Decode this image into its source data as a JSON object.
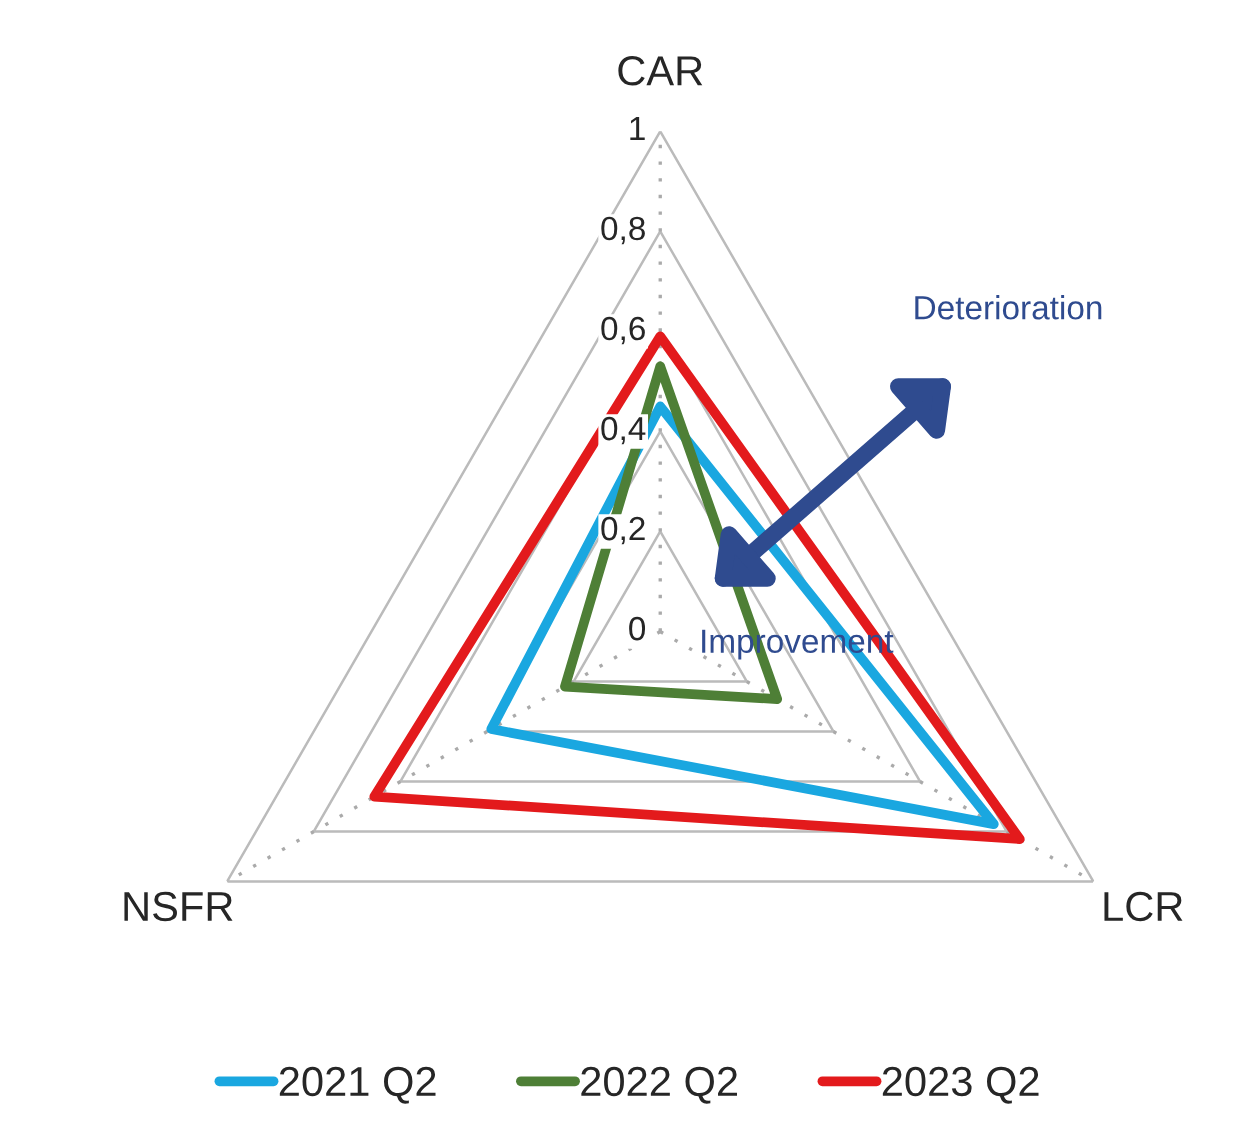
{
  "chart_data": {
    "type": "radar",
    "categories": [
      "CAR",
      "LCR",
      "NSFR"
    ],
    "series": [
      {
        "name": "2021 Q2",
        "color": "#1aa7e0",
        "values": [
          0.45,
          0.77,
          0.39
        ]
      },
      {
        "name": "2022 Q2",
        "color": "#4e7f36",
        "values": [
          0.53,
          0.27,
          0.22
        ]
      },
      {
        "name": "2023 Q2",
        "color": "#e31a1c",
        "values": [
          0.59,
          0.83,
          0.66
        ]
      }
    ],
    "ylim": [
      0,
      1
    ],
    "yticks": [
      {
        "value": 0,
        "label": "0"
      },
      {
        "value": 0.2,
        "label": "0,2"
      },
      {
        "value": 0.4,
        "label": "0,4"
      },
      {
        "value": 0.6,
        "label": "0,6"
      },
      {
        "value": 0.8,
        "label": "0,8"
      },
      {
        "value": 1,
        "label": "1"
      }
    ],
    "grid": true,
    "legend": "bottom",
    "annotations": [
      "Deterioration",
      "Improvement"
    ]
  }
}
